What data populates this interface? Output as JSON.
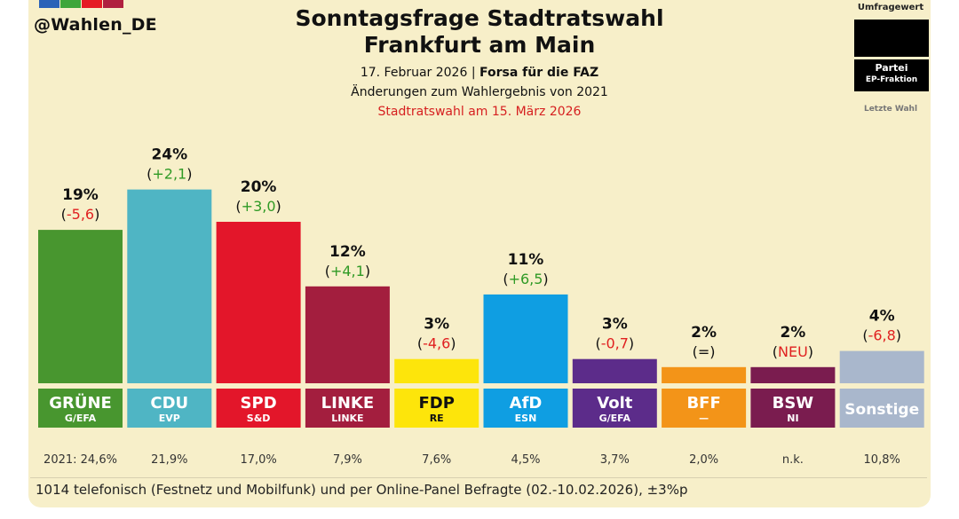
{
  "header": {
    "handle": "@Wahlen_DE",
    "title_line1": "Sonntagsfrage Stadtratswahl",
    "title_line2": "Frankfurt am Main",
    "date": "17. Februar 2026",
    "separator": " | ",
    "pollster": "Forsa für die FAZ",
    "change_note": "Änderungen zum Wahlergebnis von 2021",
    "election_note": "Stadtratswahl am 15. März 2026"
  },
  "legend": {
    "title": "Umfragewert",
    "party_label": "Partei",
    "group_label": "EP-Fraktion",
    "last_label": "Letzte Wahl"
  },
  "brand_colors": [
    "#2a62b8",
    "#3ea63a",
    "#e51b24",
    "#b0203f"
  ],
  "chart_data": {
    "type": "bar",
    "title": "Sonntagsfrage Stadtratswahl Frankfurt am Main",
    "ylim": [
      0,
      25
    ],
    "categories": [
      "GRÜNE",
      "CDU",
      "SPD",
      "LINKE",
      "FDP",
      "AfD",
      "Volt",
      "BFF",
      "BSW",
      "Sonstige"
    ],
    "groups": [
      "G/EFA",
      "EVP",
      "S&D",
      "LINKE",
      "RE",
      "ESN",
      "G/EFA",
      "—",
      "NI",
      ""
    ],
    "values": [
      19,
      24,
      20,
      12,
      3,
      11,
      3,
      2,
      2,
      4
    ],
    "value_labels": [
      "19%",
      "24%",
      "20%",
      "12%",
      "3%",
      "11%",
      "3%",
      "2%",
      "2%",
      "4%"
    ],
    "changes": [
      "-5,6",
      "+2,1",
      "+3,0",
      "+4,1",
      "-4,6",
      "+6,5",
      "-0,7",
      "=",
      "NEU",
      "-6,8"
    ],
    "change_types": [
      "neg",
      "pos",
      "pos",
      "pos",
      "neg",
      "pos",
      "neg",
      "neutral",
      "neg",
      "neg"
    ],
    "last_election": [
      "2021: 24,6%",
      "21,9%",
      "17,0%",
      "7,9%",
      "7,6%",
      "4,5%",
      "3,7%",
      "2,0%",
      "n.k.",
      "10,8%"
    ],
    "colors": [
      "#48962f",
      "#4fb5c4",
      "#e3162a",
      "#a31e3e",
      "#fde50b",
      "#0f9ee2",
      "#5c2c8a",
      "#f39418",
      "#7a1c4f",
      "#a9b7cc"
    ],
    "label_text_colors": [
      "#ffffff",
      "#ffffff",
      "#ffffff",
      "#ffffff",
      "#111111",
      "#ffffff",
      "#ffffff",
      "#ffffff",
      "#ffffff",
      "#ffffff"
    ],
    "change_colors": {
      "pos": "#2f9a25",
      "neg": "#e02020",
      "neutral": "#111111"
    }
  },
  "footer": {
    "note": "1014 telefonisch (Festnetz und Mobilfunk) und per Online-Panel Befragte (02.-10.02.2026), ±3%p"
  }
}
